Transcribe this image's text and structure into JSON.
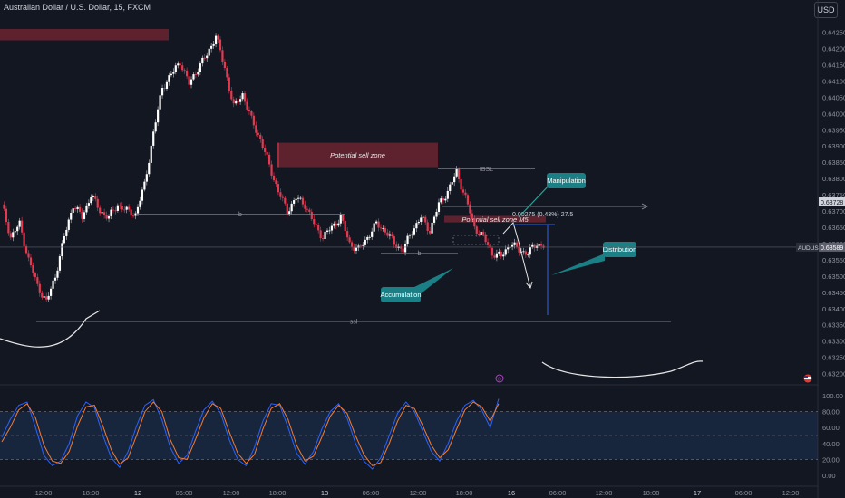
{
  "header": {
    "symbol_title": "Australian Dollar / U.S. Dollar, 15, FXCM",
    "currency": "USD"
  },
  "chart_data": [
    {
      "type": "candlestick",
      "symbol": "AUDUSD",
      "ylim": [
        0.63185,
        0.6431
      ],
      "y_ticks": [
        "0.64250",
        "0.64200",
        "0.64150",
        "0.64100",
        "0.64050",
        "0.64000",
        "0.63950",
        "0.63900",
        "0.63850",
        "0.63800",
        "0.63750",
        "0.63700",
        "0.63650",
        "0.63600",
        "0.63550",
        "0.63500",
        "0.63450",
        "0.63400",
        "0.63350",
        "0.63300",
        "0.63250",
        "0.63200"
      ],
      "x_ticks": [
        "12:00",
        "18:00",
        "12",
        "06:00",
        "12:00",
        "18:00",
        "13",
        "06:00",
        "12:00",
        "18:00",
        "16",
        "06:00",
        "12:00",
        "18:00",
        "17",
        "06:00",
        "12:00"
      ],
      "price_tags": [
        {
          "label": "AUDUSD",
          "value": "0.63589",
          "color": "#5d606b"
        },
        {
          "label": "",
          "value": "0.63728",
          "color": "#d1d4dc"
        }
      ],
      "price_path": [
        [
          0,
          0.6372
        ],
        [
          2,
          0.6362
        ],
        [
          4,
          0.6366
        ],
        [
          6,
          0.6355
        ],
        [
          8,
          0.6347
        ],
        [
          10,
          0.6342
        ],
        [
          12,
          0.635
        ],
        [
          14,
          0.6362
        ],
        [
          16,
          0.6372
        ],
        [
          18,
          0.6368
        ],
        [
          20,
          0.6375
        ],
        [
          22,
          0.637
        ],
        [
          24,
          0.6368
        ],
        [
          26,
          0.6372
        ],
        [
          28,
          0.637
        ],
        [
          30,
          0.6369
        ],
        [
          32,
          0.6378
        ],
        [
          34,
          0.6394
        ],
        [
          36,
          0.6408
        ],
        [
          38,
          0.6412
        ],
        [
          40,
          0.6416
        ],
        [
          42,
          0.6409
        ],
        [
          44,
          0.6414
        ],
        [
          46,
          0.6418
        ],
        [
          48,
          0.6424
        ],
        [
          50,
          0.6414
        ],
        [
          52,
          0.6402
        ],
        [
          54,
          0.6406
        ],
        [
          56,
          0.6398
        ],
        [
          58,
          0.6392
        ],
        [
          60,
          0.6384
        ],
        [
          62,
          0.6376
        ],
        [
          64,
          0.637
        ],
        [
          66,
          0.6374
        ],
        [
          68,
          0.6372
        ],
        [
          70,
          0.6366
        ],
        [
          72,
          0.6362
        ],
        [
          74,
          0.6365
        ],
        [
          76,
          0.6368
        ],
        [
          78,
          0.636
        ],
        [
          80,
          0.6358
        ],
        [
          82,
          0.6362
        ],
        [
          84,
          0.6366
        ],
        [
          86,
          0.6364
        ],
        [
          88,
          0.636
        ],
        [
          90,
          0.6358
        ],
        [
          92,
          0.6364
        ],
        [
          94,
          0.6368
        ],
        [
          96,
          0.6364
        ],
        [
          98,
          0.6372
        ],
        [
          100,
          0.6376
        ],
        [
          102,
          0.6382
        ],
        [
          104,
          0.6374
        ],
        [
          106,
          0.6365
        ],
        [
          108,
          0.6362
        ],
        [
          110,
          0.6357
        ],
        [
          112,
          0.6356
        ],
        [
          114,
          0.636
        ],
        [
          116,
          0.6358
        ],
        [
          118,
          0.6357
        ],
        [
          120,
          0.636
        ],
        [
          122,
          0.6359
        ]
      ],
      "zones": [
        {
          "label": "",
          "price_top": 0.6426,
          "price_bottom": 0.64225,
          "color": "#6b2430"
        },
        {
          "label": "Potential sell zone",
          "price_top": 0.6391,
          "price_bottom": 0.63835,
          "color": "#6b2430"
        },
        {
          "label": "Potential sell zone M5",
          "price_top": 0.63685,
          "price_bottom": 0.63665,
          "color": "#6b2430"
        }
      ],
      "levels": [
        {
          "label": "IBSL",
          "price": 0.6383
        },
        {
          "label": "b",
          "price": 0.6369
        },
        {
          "label": "b",
          "price": 0.6357
        },
        {
          "label": "ssl",
          "price": 0.6336
        }
      ],
      "measure_label": "0.00275 (0.43%) 27.5",
      "callouts": [
        "Manipulation",
        "Distribution",
        "Accumulation"
      ],
      "grid": false
    },
    {
      "type": "line",
      "name": "stochastic-oscillator",
      "ylim": [
        0,
        100
      ],
      "y_ticks": [
        "100.00",
        "80.00",
        "60.00",
        "40.00",
        "20.00",
        "0.00"
      ],
      "band": [
        20,
        80
      ],
      "series": [
        {
          "color": "#2962ff",
          "values": [
            48,
            70,
            88,
            92,
            60,
            25,
            12,
            18,
            40,
            75,
            92,
            85,
            50,
            22,
            10,
            30,
            62,
            88,
            95,
            70,
            35,
            15,
            25,
            55,
            82,
            93,
            78,
            45,
            20,
            12,
            35,
            68,
            90,
            88,
            60,
            28,
            14,
            30,
            58,
            80,
            90,
            72,
            40,
            18,
            8,
            22,
            50,
            78,
            92,
            80,
            55,
            30,
            18,
            40,
            68,
            88,
            94,
            82,
            60,
            96
          ]
        },
        {
          "color": "#f57c33",
          "values": [
            42,
            60,
            82,
            90,
            72,
            38,
            18,
            15,
            30,
            62,
            86,
            88,
            62,
            32,
            14,
            22,
            50,
            80,
            92,
            80,
            45,
            22,
            20,
            45,
            72,
            90,
            84,
            55,
            28,
            15,
            26,
            58,
            84,
            90,
            70,
            38,
            18,
            24,
            48,
            74,
            88,
            78,
            50,
            26,
            12,
            16,
            40,
            68,
            88,
            84,
            62,
            38,
            22,
            32,
            58,
            82,
            92,
            86,
            68,
            90
          ]
        }
      ]
    }
  ]
}
